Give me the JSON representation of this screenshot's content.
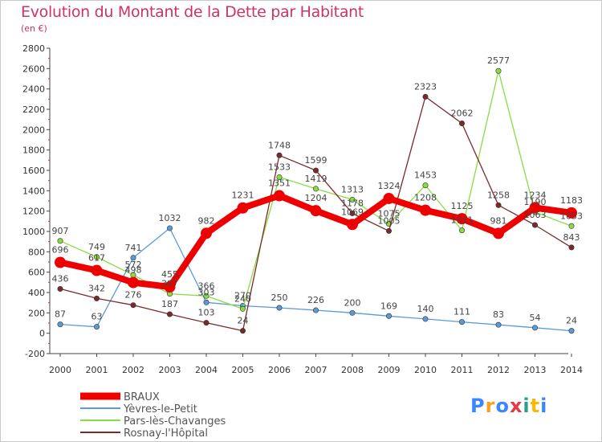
{
  "chart_data": {
    "type": "line",
    "title": "Evolution du Montant de la Dette par Habitant",
    "subtitle": "(en €)",
    "xlabel": "",
    "ylabel": "",
    "ylim": [
      -200,
      2800
    ],
    "yticks": [
      -200,
      0,
      200,
      400,
      600,
      800,
      1000,
      1200,
      1400,
      1600,
      1800,
      2000,
      2200,
      2400,
      2600,
      2800
    ],
    "categories": [
      "2000",
      "2001",
      "2002",
      "2003",
      "2004",
      "2005",
      "2006",
      "2007",
      "2008",
      "2009",
      "2010",
      "2011",
      "2012",
      "2013",
      "2014"
    ],
    "series": [
      {
        "name": "Yèvres-le-Petit",
        "color": "#5b9bd5",
        "values": [
          87,
          63,
          741,
          1032,
          303,
          270,
          250,
          226,
          200,
          169,
          140,
          111,
          83,
          54,
          24
        ]
      },
      {
        "name": "Pars-lès-Chavanges",
        "color": "#88dd44",
        "values": [
          907,
          749,
          572,
          387,
          366,
          240,
          1533,
          1419,
          1313,
          1075,
          1453,
          1011,
          2577,
          1190,
          1053
        ]
      },
      {
        "name": "Rosnay-l'Hôpital",
        "color": "#7a2a2a",
        "values": [
          436,
          342,
          276,
          187,
          103,
          24,
          1748,
          1599,
          1178,
          1005,
          2323,
          2062,
          1258,
          1063,
          843
        ]
      },
      {
        "name": "BRAUX",
        "color": "#ee0000",
        "values": [
          696,
          617,
          498,
          455,
          982,
          1231,
          1351,
          1204,
          1069,
          1324,
          1208,
          1125,
          981,
          1234,
          1183
        ]
      }
    ],
    "legend_order": [
      "BRAUX",
      "Yèvres-le-Petit",
      "Pars-lès-Chavanges",
      "Rosnay-l'Hôpital"
    ],
    "legend_position": "bottom-left"
  },
  "logo": {
    "text": "Proxiti"
  }
}
